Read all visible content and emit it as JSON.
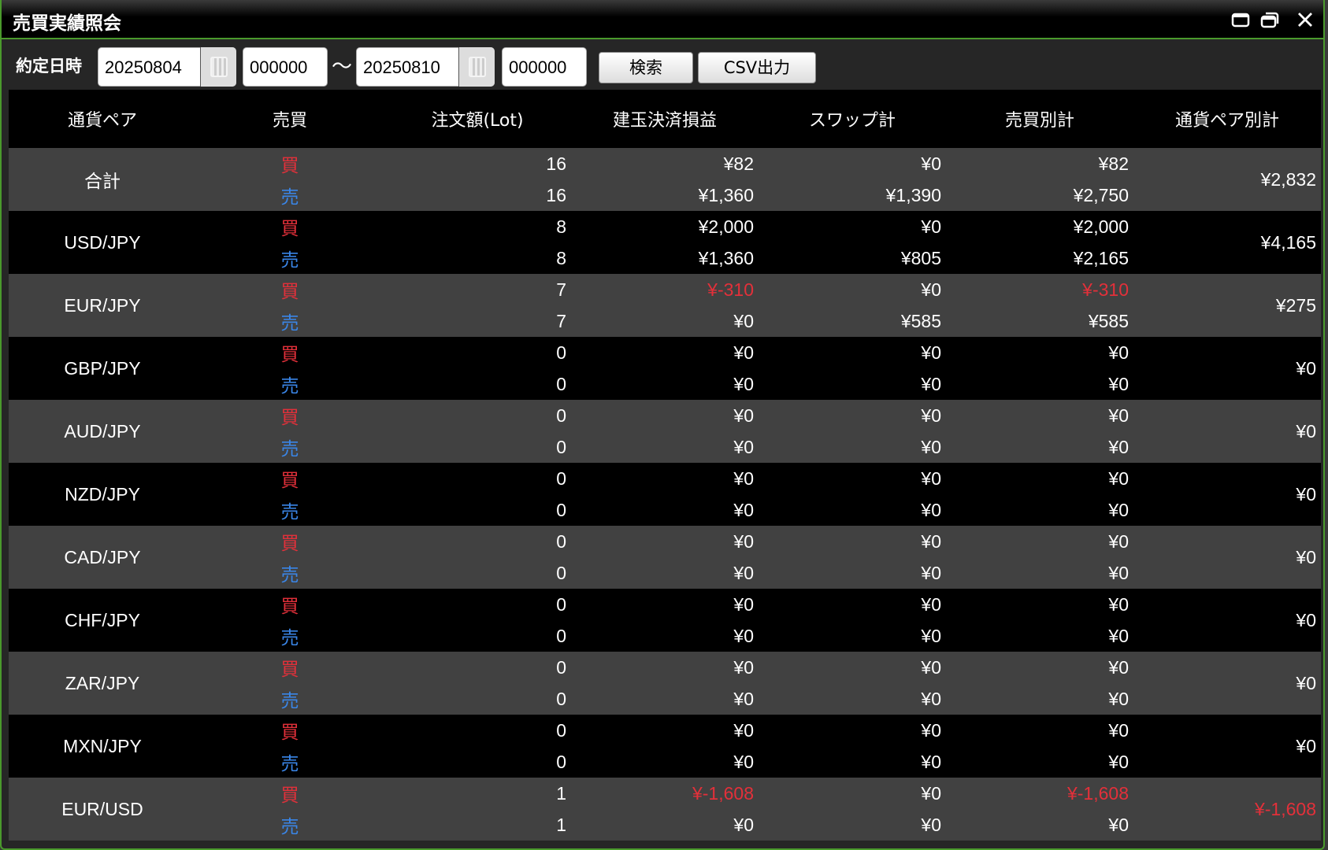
{
  "window": {
    "title": "売買実績照会",
    "icons": [
      "maximize-icon",
      "restore-icon",
      "close-icon"
    ]
  },
  "filter": {
    "label": "約定日時",
    "from_date": "20250804",
    "from_time": "000000",
    "separator": "〜",
    "to_date": "20250810",
    "to_time": "000000",
    "search_label": "検索",
    "csv_label": "CSV出力"
  },
  "columns": [
    "通貨ペア",
    "売買",
    "注文額(Lot)",
    "建玉決済損益",
    "スワップ計",
    "売買別計",
    "通貨ペア別計"
  ],
  "side_labels": {
    "buy": "買",
    "sell": "売"
  },
  "colors": {
    "buy": "#e3303a",
    "sell": "#3a86e8",
    "negative": "#e3303a"
  },
  "rows": [
    {
      "pair": "合計",
      "buy": {
        "lot": "16",
        "pl": "¥82",
        "swap": "¥0",
        "total": "¥82"
      },
      "sell": {
        "lot": "16",
        "pl": "¥1,360",
        "swap": "¥1,390",
        "total": "¥2,750"
      },
      "pair_total": "¥2,832"
    },
    {
      "pair": "USD/JPY",
      "buy": {
        "lot": "8",
        "pl": "¥2,000",
        "swap": "¥0",
        "total": "¥2,000"
      },
      "sell": {
        "lot": "8",
        "pl": "¥1,360",
        "swap": "¥805",
        "total": "¥2,165"
      },
      "pair_total": "¥4,165"
    },
    {
      "pair": "EUR/JPY",
      "buy": {
        "lot": "7",
        "pl": "¥-310",
        "swap": "¥0",
        "total": "¥-310"
      },
      "sell": {
        "lot": "7",
        "pl": "¥0",
        "swap": "¥585",
        "total": "¥585"
      },
      "pair_total": "¥275"
    },
    {
      "pair": "GBP/JPY",
      "buy": {
        "lot": "0",
        "pl": "¥0",
        "swap": "¥0",
        "total": "¥0"
      },
      "sell": {
        "lot": "0",
        "pl": "¥0",
        "swap": "¥0",
        "total": "¥0"
      },
      "pair_total": "¥0"
    },
    {
      "pair": "AUD/JPY",
      "buy": {
        "lot": "0",
        "pl": "¥0",
        "swap": "¥0",
        "total": "¥0"
      },
      "sell": {
        "lot": "0",
        "pl": "¥0",
        "swap": "¥0",
        "total": "¥0"
      },
      "pair_total": "¥0"
    },
    {
      "pair": "NZD/JPY",
      "buy": {
        "lot": "0",
        "pl": "¥0",
        "swap": "¥0",
        "total": "¥0"
      },
      "sell": {
        "lot": "0",
        "pl": "¥0",
        "swap": "¥0",
        "total": "¥0"
      },
      "pair_total": "¥0"
    },
    {
      "pair": "CAD/JPY",
      "buy": {
        "lot": "0",
        "pl": "¥0",
        "swap": "¥0",
        "total": "¥0"
      },
      "sell": {
        "lot": "0",
        "pl": "¥0",
        "swap": "¥0",
        "total": "¥0"
      },
      "pair_total": "¥0"
    },
    {
      "pair": "CHF/JPY",
      "buy": {
        "lot": "0",
        "pl": "¥0",
        "swap": "¥0",
        "total": "¥0"
      },
      "sell": {
        "lot": "0",
        "pl": "¥0",
        "swap": "¥0",
        "total": "¥0"
      },
      "pair_total": "¥0"
    },
    {
      "pair": "ZAR/JPY",
      "buy": {
        "lot": "0",
        "pl": "¥0",
        "swap": "¥0",
        "total": "¥0"
      },
      "sell": {
        "lot": "0",
        "pl": "¥0",
        "swap": "¥0",
        "total": "¥0"
      },
      "pair_total": "¥0"
    },
    {
      "pair": "MXN/JPY",
      "buy": {
        "lot": "0",
        "pl": "¥0",
        "swap": "¥0",
        "total": "¥0"
      },
      "sell": {
        "lot": "0",
        "pl": "¥0",
        "swap": "¥0",
        "total": "¥0"
      },
      "pair_total": "¥0"
    },
    {
      "pair": "EUR/USD",
      "buy": {
        "lot": "1",
        "pl": "¥-1,608",
        "swap": "¥0",
        "total": "¥-1,608"
      },
      "sell": {
        "lot": "1",
        "pl": "¥0",
        "swap": "¥0",
        "total": "¥0"
      },
      "pair_total": "¥-1,608"
    }
  ]
}
